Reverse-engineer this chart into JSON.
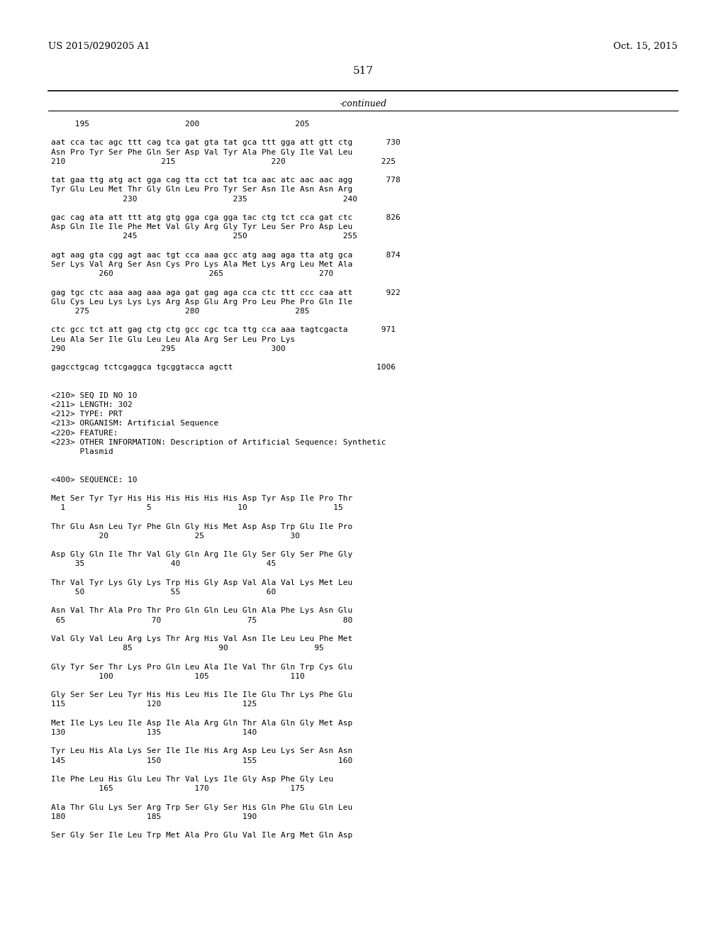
{
  "left_header": "US 2015/0290205 A1",
  "right_header": "Oct. 15, 2015",
  "page_number": "517",
  "continued_label": "-continued",
  "background_color": "#ffffff",
  "text_color": "#000000",
  "content": [
    "     195                    200                    205",
    "",
    "aat cca tac agc ttt cag tca gat gta tat gca ttt gga att gtt ctg       730",
    "Asn Pro Tyr Ser Phe Gln Ser Asp Val Tyr Ala Phe Gly Ile Val Leu",
    "210                    215                    220                    225",
    "",
    "tat gaa ttg atg act gga cag tta cct tat tca aac atc aac aac agg       778",
    "Tyr Glu Leu Met Thr Gly Gln Leu Pro Tyr Ser Asn Ile Asn Asn Arg",
    "               230                    235                    240",
    "",
    "gac cag ata att ttt atg gtg gga cga gga tac ctg tct cca gat ctc       826",
    "Asp Gln Ile Ile Phe Met Val Gly Arg Gly Tyr Leu Ser Pro Asp Leu",
    "               245                    250                    255",
    "",
    "agt aag gta cgg agt aac tgt cca aaa gcc atg aag aga tta atg gca       874",
    "Ser Lys Val Arg Ser Asn Cys Pro Lys Ala Met Lys Arg Leu Met Ala",
    "          260                    265                    270",
    "",
    "gag tgc ctc aaa aag aaa aga gat gag aga cca ctc ttt ccc caa att       922",
    "Glu Cys Leu Lys Lys Lys Arg Asp Glu Arg Pro Leu Phe Pro Gln Ile",
    "     275                    280                    285",
    "",
    "ctc gcc tct att gag ctg ctg gcc cgc tca ttg cca aaa tagtcgacta       971",
    "Leu Ala Ser Ile Glu Leu Leu Ala Arg Ser Leu Pro Lys",
    "290                    295                    300",
    "",
    "gagcctgcag tctcgaggca tgcggtacca agctt                              1006",
    "",
    "",
    "<210> SEQ ID NO 10",
    "<211> LENGTH: 302",
    "<212> TYPE: PRT",
    "<213> ORGANISM: Artificial Sequence",
    "<220> FEATURE:",
    "<223> OTHER INFORMATION: Description of Artificial Sequence: Synthetic",
    "      Plasmid",
    "",
    "",
    "<400> SEQUENCE: 10",
    "",
    "Met Ser Tyr Tyr His His His His His His Asp Tyr Asp Ile Pro Thr",
    "  1                 5                  10                  15",
    "",
    "Thr Glu Asn Leu Tyr Phe Gln Gly His Met Asp Asp Trp Glu Ile Pro",
    "          20                  25                  30",
    "",
    "Asp Gly Gln Ile Thr Val Gly Gln Arg Ile Gly Ser Gly Ser Phe Gly",
    "     35                  40                  45",
    "",
    "Thr Val Tyr Lys Gly Lys Trp His Gly Asp Val Ala Val Lys Met Leu",
    "     50                  55                  60",
    "",
    "Asn Val Thr Ala Pro Thr Pro Gln Gln Leu Gln Ala Phe Lys Asn Glu",
    " 65                  70                  75                  80",
    "",
    "Val Gly Val Leu Arg Lys Thr Arg His Val Asn Ile Leu Leu Phe Met",
    "               85                  90                  95",
    "",
    "Gly Tyr Ser Thr Lys Pro Gln Leu Ala Ile Val Thr Gln Trp Cys Glu",
    "          100                 105                 110",
    "",
    "Gly Ser Ser Leu Tyr His His Leu His Ile Ile Glu Thr Lys Phe Glu",
    "115                 120                 125",
    "",
    "Met Ile Lys Leu Ile Asp Ile Ala Arg Gln Thr Ala Gln Gly Met Asp",
    "130                 135                 140",
    "",
    "Tyr Leu His Ala Lys Ser Ile Ile His Arg Asp Leu Lys Ser Asn Asn",
    "145                 150                 155                 160",
    "",
    "Ile Phe Leu His Glu Leu Thr Val Lys Ile Gly Asp Phe Gly Leu",
    "          165                 170                 175",
    "",
    "Ala Thr Glu Lys Ser Arg Trp Ser Gly Ser His Gln Phe Glu Gln Leu",
    "180                 185                 190",
    "",
    "Ser Gly Ser Ile Leu Trp Met Ala Pro Glu Val Ile Arg Met Gln Asp"
  ]
}
